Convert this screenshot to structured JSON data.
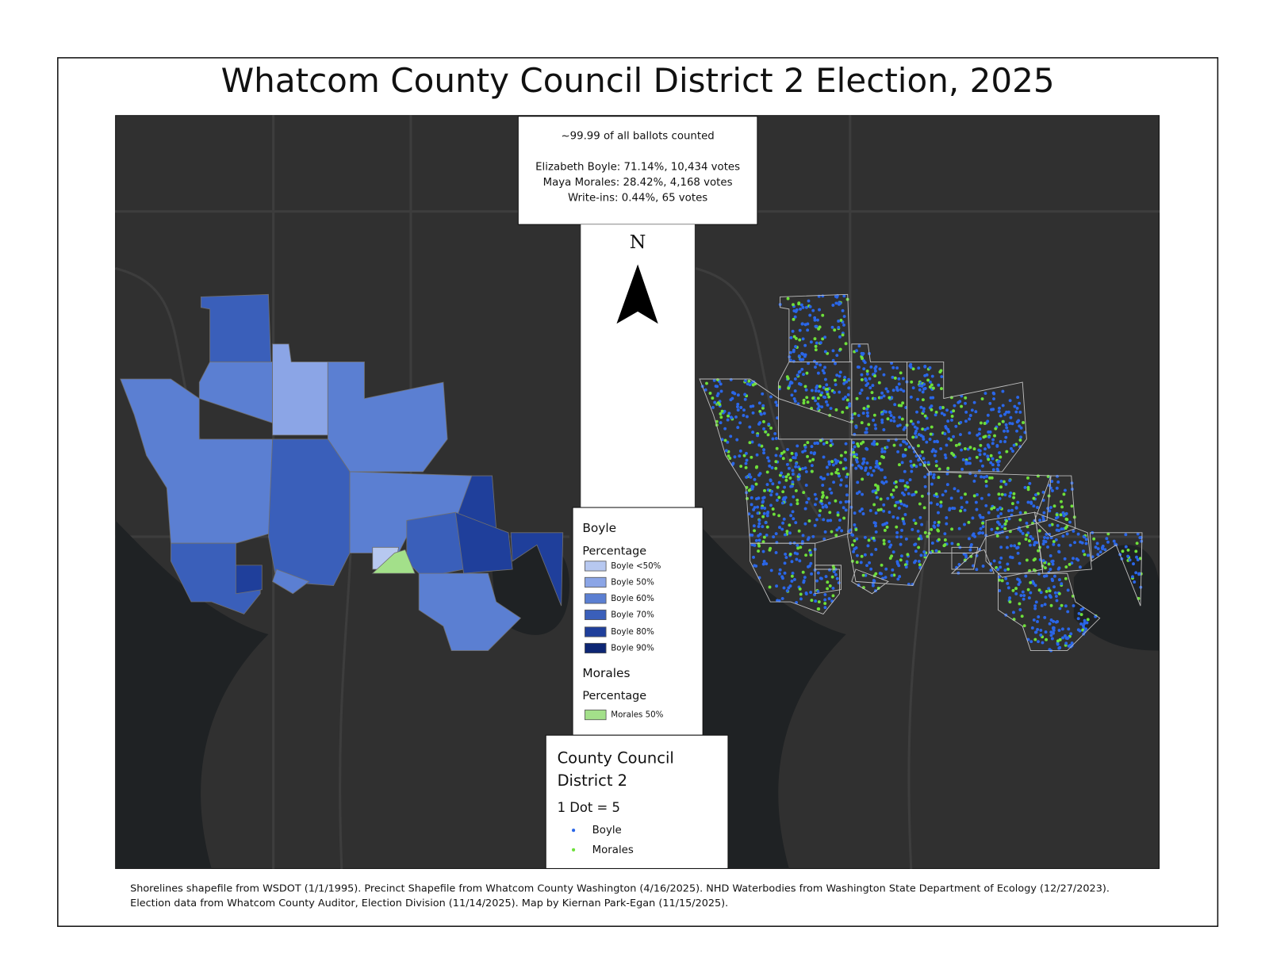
{
  "title": "Whatcom County Council District 2 Election, 2025",
  "info": {
    "counted": "~99.99 of all ballots counted",
    "lines": [
      "Elizabeth Boyle: 71.14%, 10,434 votes",
      "Maya Morales: 28.42%, 4,168 votes",
      "Write-ins: 0.44%, 65 votes"
    ]
  },
  "north": "N",
  "legend": {
    "boyle_title": "Boyle",
    "boyle_subtitle": "Percentage",
    "boyle_items": [
      {
        "label": "Boyle <50%",
        "color": "#b7c8f0"
      },
      {
        "label": "Boyle 50%",
        "color": "#8ba5e6"
      },
      {
        "label": "Boyle 60%",
        "color": "#5b7fd2"
      },
      {
        "label": "Boyle 70%",
        "color": "#3a5fba"
      },
      {
        "label": "Boyle 80%",
        "color": "#1f3f9b"
      },
      {
        "label": "Boyle 90%",
        "color": "#0d2674"
      }
    ],
    "morales_title": "Morales",
    "morales_subtitle": "Percentage",
    "morales_items": [
      {
        "label": "Morales 50%",
        "color": "#a3e08a"
      }
    ]
  },
  "dot_legend": {
    "title": [
      "County Council",
      "District 2"
    ],
    "unit": "1 Dot = 5",
    "items": [
      {
        "label": "Boyle",
        "color": "#2a66e8"
      },
      {
        "label": "Morales",
        "color": "#6ee03a"
      }
    ]
  },
  "footnote": [
    "Shorelines shapefile from WSDOT (1/1/1995). Precinct Shapefile from Whatcom County Washington (4/16/2025). NHD Waterbodies from Washington State Department of Ecology (12/27/2023).",
    "Election data from Whatcom County Auditor, Election Division (11/14/2025). Map by Kiernan Park-Egan (11/15/2025)."
  ]
}
